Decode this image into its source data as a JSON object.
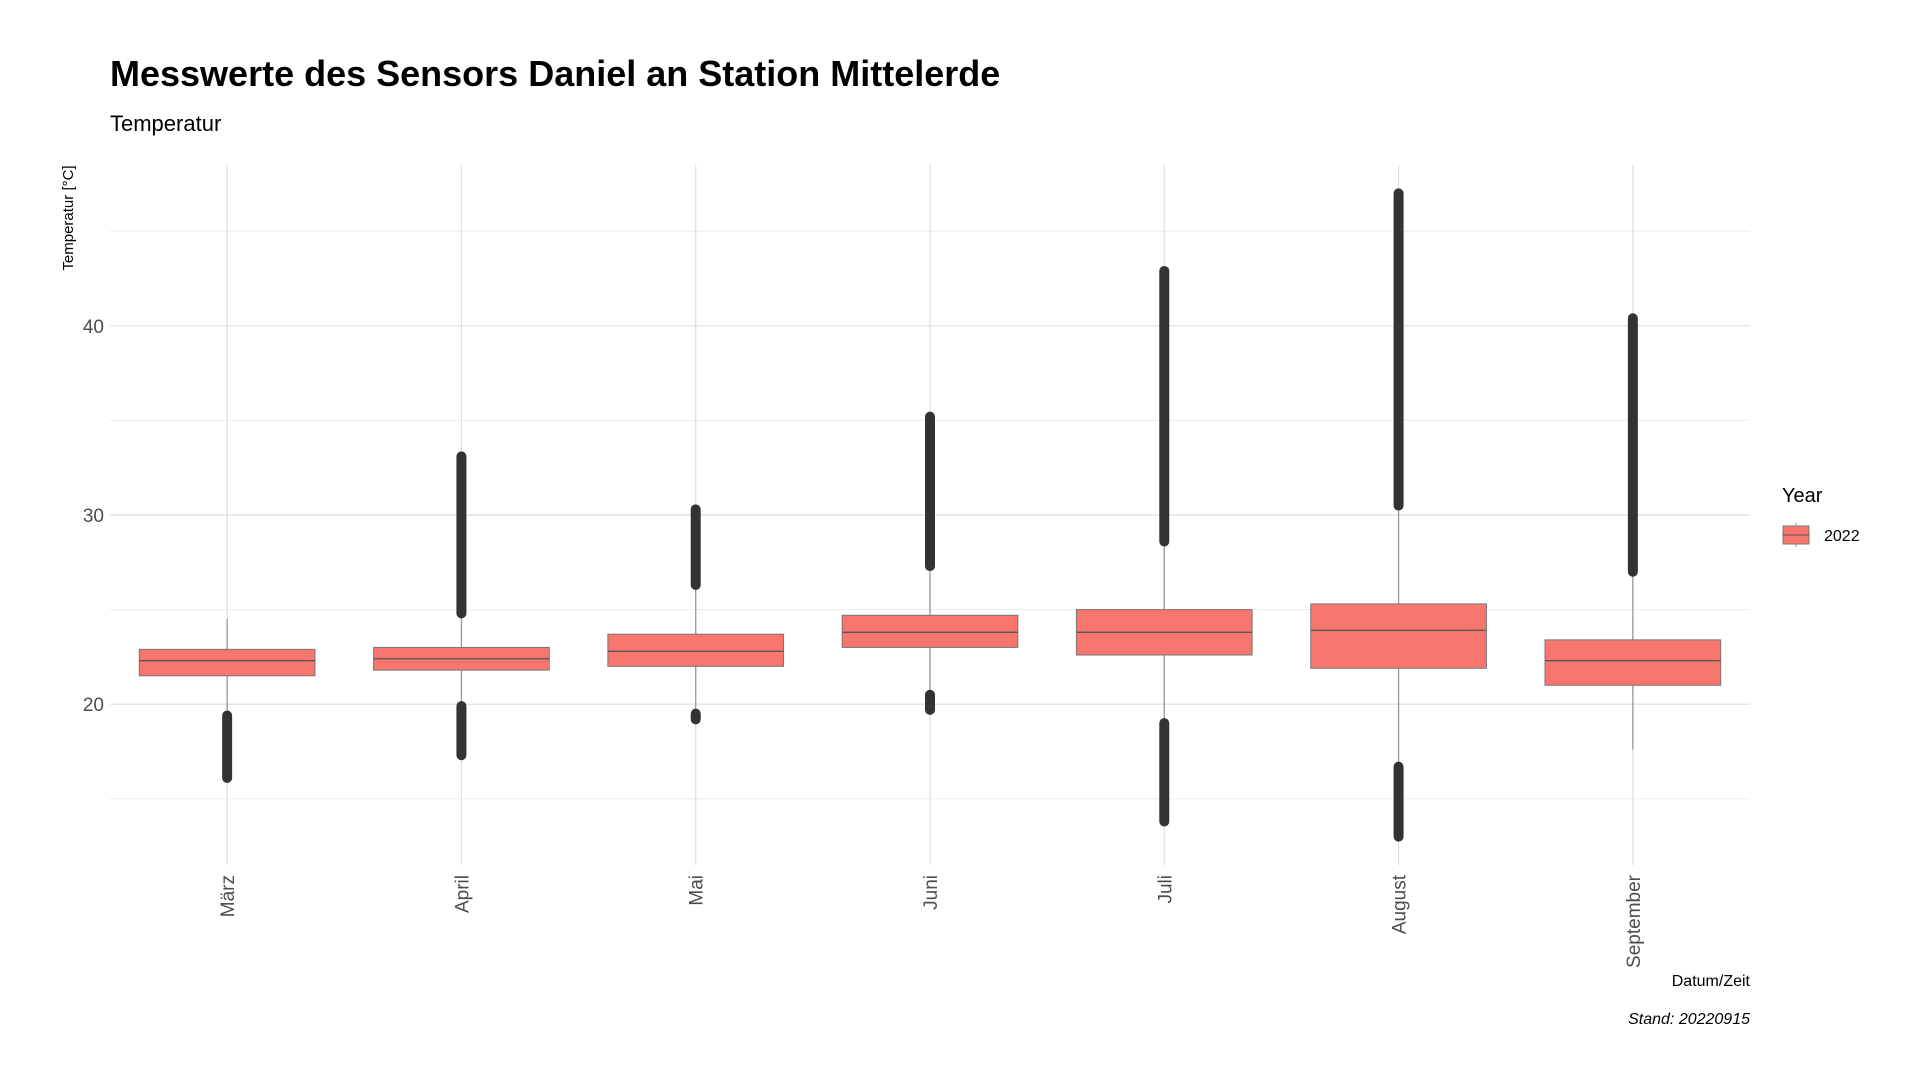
{
  "chart_data": {
    "type": "boxplot",
    "title": "Messwerte des Sensors Daniel an Station Mittelerde",
    "subtitle": "Temperatur",
    "xlabel": "Datum/Zeit",
    "ylabel": "Temperatur [°C]",
    "caption": "Stand: 20220915",
    "ylim": [
      11.5,
      48.5
    ],
    "yticks": [
      20,
      30,
      40
    ],
    "grid": true,
    "legend": {
      "title": "Year",
      "position": "right",
      "entries": [
        {
          "label": "2022",
          "color": "#F8766D"
        }
      ]
    },
    "box_color": "#F8766D",
    "outlier_color": "#333333",
    "categories": [
      "März",
      "April",
      "Mai",
      "Juni",
      "Juli",
      "August",
      "September"
    ],
    "series": [
      {
        "name": "2022",
        "boxes": [
          {
            "q1": 21.5,
            "median": 22.3,
            "q3": 22.9,
            "whisker_low": 19.4,
            "whisker_high": 24.5,
            "outliers_low": [
              16.1,
              19.4
            ],
            "outliers_high": []
          },
          {
            "q1": 21.8,
            "median": 22.4,
            "q3": 23.0,
            "whisker_low": 19.9,
            "whisker_high": 24.8,
            "outliers_low": [
              17.3,
              19.9
            ],
            "outliers_high": [
              24.8,
              33.1
            ]
          },
          {
            "q1": 22.0,
            "median": 22.8,
            "q3": 23.7,
            "whisker_low": 19.6,
            "whisker_high": 26.3,
            "outliers_low": [
              19.2,
              19.5
            ],
            "outliers_high": [
              26.3,
              30.3
            ]
          },
          {
            "q1": 23.0,
            "median": 23.8,
            "q3": 24.7,
            "whisker_low": 20.5,
            "whisker_high": 27.3,
            "outliers_low": [
              19.7,
              20.5
            ],
            "outliers_high": [
              27.3,
              35.2
            ]
          },
          {
            "q1": 22.6,
            "median": 23.8,
            "q3": 25.0,
            "whisker_low": 19.0,
            "whisker_high": 28.6,
            "outliers_low": [
              13.8,
              19.0
            ],
            "outliers_high": [
              28.6,
              42.9
            ]
          },
          {
            "q1": 21.9,
            "median": 23.9,
            "q3": 25.3,
            "whisker_low": 16.7,
            "whisker_high": 30.5,
            "outliers_low": [
              13.0,
              16.7
            ],
            "outliers_high": [
              30.5,
              47.0
            ]
          },
          {
            "q1": 21.0,
            "median": 22.3,
            "q3": 23.4,
            "whisker_low": 17.6,
            "whisker_high": 27.0,
            "outliers_low": [],
            "outliers_high": [
              27.0,
              40.4
            ]
          }
        ]
      }
    ]
  }
}
